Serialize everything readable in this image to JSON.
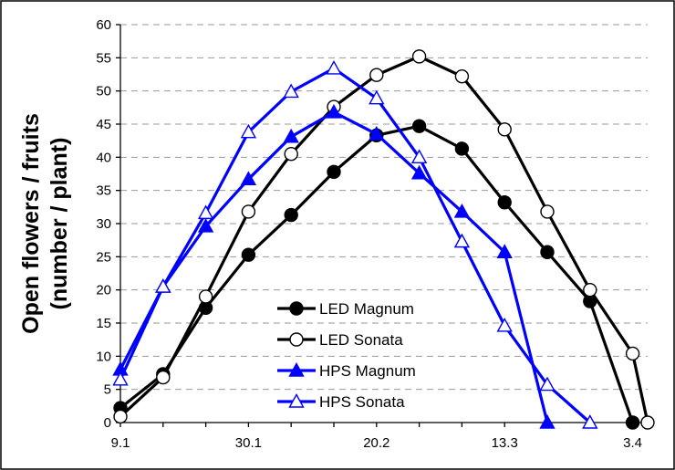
{
  "chart_data": {
    "type": "line",
    "title": "",
    "xlabel": "",
    "ylabel": [
      "Open flowers / fruits",
      "(number / plant)"
    ],
    "ylim": [
      0,
      60
    ],
    "yticks": [
      0,
      5,
      10,
      15,
      20,
      25,
      30,
      35,
      40,
      45,
      50,
      55,
      60
    ],
    "xlim": [
      0,
      13
    ],
    "x_tick_positions": [
      0,
      3,
      6,
      9,
      12
    ],
    "x_tick_labels": [
      "9.1",
      "30.1",
      "20.2",
      "13.3",
      "3.4"
    ],
    "grid": "horizontal dashed",
    "legend_position": "center-bottom",
    "series": [
      {
        "name": "LED Magnum",
        "color": "#000000",
        "marker": "circle",
        "filled": true,
        "x": [
          0,
          1,
          2,
          3,
          4,
          5,
          6,
          7,
          8,
          9,
          10,
          11,
          12
        ],
        "values": [
          2.2,
          7.3,
          17.3,
          25.3,
          31.3,
          37.8,
          43.3,
          44.7,
          41.3,
          33.2,
          25.7,
          18.3,
          0
        ]
      },
      {
        "name": "LED Sonata",
        "color": "#000000",
        "marker": "circle",
        "filled": false,
        "x": [
          0,
          1,
          2,
          3,
          4,
          5,
          6,
          7,
          8,
          9,
          10,
          11,
          12,
          12.35
        ],
        "values": [
          0.9,
          6.8,
          19.0,
          31.8,
          40.5,
          47.6,
          52.4,
          55.2,
          52.2,
          44.2,
          31.8,
          20.0,
          10.4,
          0
        ]
      },
      {
        "name": "HPS Magnum",
        "color": "#0000ff",
        "marker": "triangle",
        "filled": true,
        "x": [
          0,
          1,
          2,
          3,
          4,
          5,
          6,
          7,
          8,
          9,
          10
        ],
        "values": [
          8.0,
          20.5,
          29.6,
          36.7,
          43.1,
          46.8,
          43.5,
          37.6,
          31.8,
          25.7,
          0
        ]
      },
      {
        "name": "HPS Sonata",
        "color": "#0000ff",
        "marker": "triangle",
        "filled": false,
        "x": [
          0,
          1,
          2,
          3,
          4,
          5,
          6,
          7,
          8,
          9,
          10,
          11
        ],
        "values": [
          6.5,
          20.5,
          31.6,
          43.8,
          49.9,
          53.4,
          48.9,
          40.0,
          27.3,
          14.6,
          5.7,
          0
        ]
      }
    ]
  }
}
